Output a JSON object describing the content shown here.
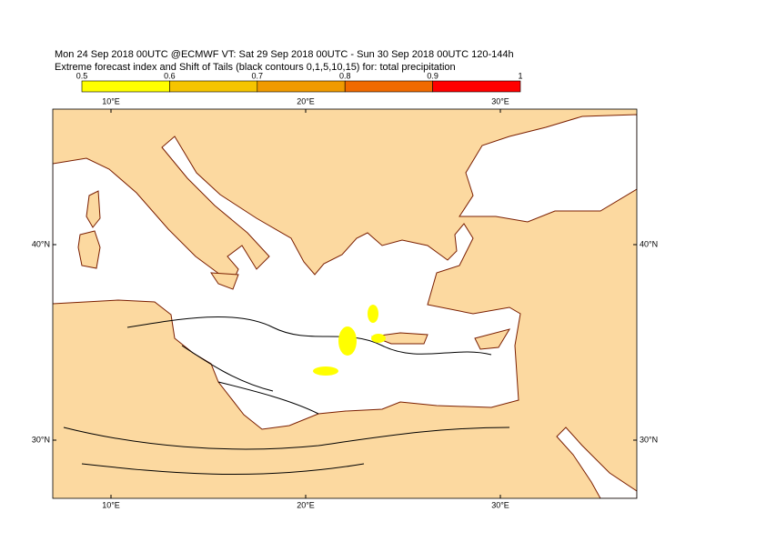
{
  "header": {
    "line1": "Mon 24 Sep 2018 00UTC @ECMWF VT: Sat 29 Sep 2018 00UTC - Sun 30 Sep 2018 00UTC  120-144h",
    "line2": "Extreme forecast index and Shift of Tails (black contours 0,1,5,10,15) for: total precipitation"
  },
  "colorbar": {
    "ticks": [
      0.5,
      0.6,
      0.7,
      0.8,
      0.9,
      1
    ],
    "colors": [
      "#ffff00",
      "#f5c400",
      "#f09a00",
      "#f06a00",
      "#ff0000"
    ]
  },
  "map": {
    "lon": [
      {
        "value": 10,
        "label": "10°E"
      },
      {
        "value": 20,
        "label": "20°E"
      },
      {
        "value": 30,
        "label": "30°E"
      }
    ],
    "lat": [
      {
        "value": 40,
        "label": "40°N"
      },
      {
        "value": 30,
        "label": "30°N"
      }
    ]
  }
}
